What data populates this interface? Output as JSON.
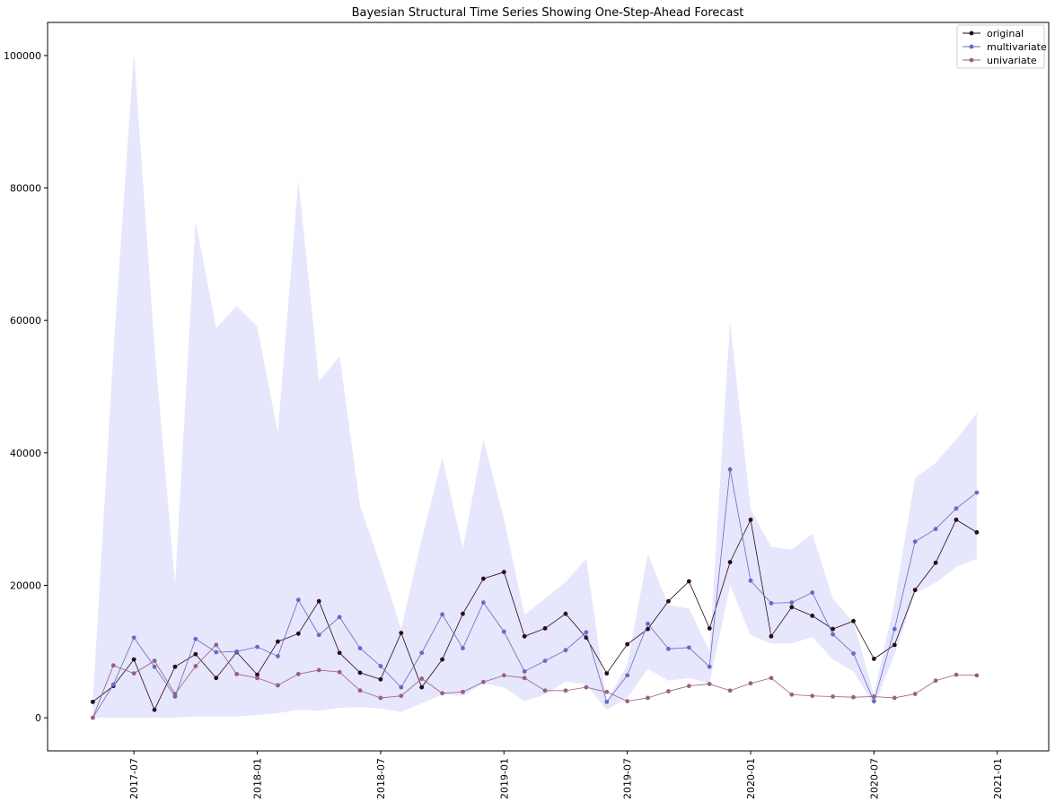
{
  "chart_data": {
    "type": "line",
    "title": "Bayesian Structural Time Series Showing One-Step-Ahead Forecast",
    "xlabel": "",
    "ylabel": "",
    "ylim": [
      -5000,
      105000
    ],
    "yticks": [
      0,
      20000,
      40000,
      60000,
      80000,
      100000
    ],
    "ytick_labels": [
      "0",
      "20000",
      "40000",
      "60000",
      "80000",
      "100000"
    ],
    "xlim_months": [
      -2.2,
      46.5
    ],
    "xticks_months": [
      2,
      8,
      14,
      20,
      26,
      32,
      38,
      44
    ],
    "xtick_labels": [
      "2017-07",
      "2018-01",
      "2018-07",
      "2019-01",
      "2019-07",
      "2020-01",
      "2020-07",
      "2021-01"
    ],
    "x_start": "2017-05",
    "x": [
      "2017-05",
      "2017-06",
      "2017-07",
      "2017-08",
      "2017-09",
      "2017-10",
      "2017-11",
      "2017-12",
      "2018-01",
      "2018-02",
      "2018-03",
      "2018-04",
      "2018-05",
      "2018-06",
      "2018-07",
      "2018-08",
      "2018-09",
      "2018-10",
      "2018-11",
      "2018-12",
      "2019-01",
      "2019-02",
      "2019-03",
      "2019-04",
      "2019-05",
      "2019-06",
      "2019-07",
      "2019-08",
      "2019-09",
      "2019-10",
      "2019-11",
      "2019-12",
      "2020-01",
      "2020-02",
      "2020-03",
      "2020-04",
      "2020-05",
      "2020-06",
      "2020-07",
      "2020-08",
      "2020-09",
      "2020-10",
      "2020-11",
      "2020-12"
    ],
    "series": [
      {
        "name": "original",
        "color": "#2a0a18",
        "values": [
          2400,
          4800,
          8800,
          1200,
          7700,
          9600,
          6000,
          9900,
          6500,
          11500,
          12700,
          17600,
          9800,
          6800,
          5800,
          12800,
          4600,
          8800,
          15700,
          21000,
          22000,
          12300,
          13500,
          15700,
          12100,
          6700,
          11100,
          13400,
          17600,
          20600,
          13500,
          23500,
          29900,
          12300,
          16700,
          15400,
          13400,
          14600,
          8900,
          11000,
          19300,
          23400,
          29900,
          28000
        ]
      },
      {
        "name": "multivariate",
        "color": "#6a6ac4",
        "values": [
          0,
          5000,
          12100,
          7700,
          3200,
          11900,
          9900,
          10000,
          10700,
          9300,
          17800,
          12500,
          15200,
          10500,
          7800,
          4600,
          9800,
          15600,
          10500,
          17400,
          13000,
          7000,
          8600,
          10200,
          12900,
          2400,
          6400,
          14200,
          10400,
          10600,
          7700,
          37500,
          20700,
          17300,
          17400,
          18900,
          12600,
          9700,
          2500,
          13400,
          26600,
          28500,
          31600,
          34000
        ]
      },
      {
        "name": "univariate",
        "color": "#9a6080",
        "values": [
          0,
          7900,
          6700,
          8600,
          3600,
          7800,
          11000,
          6600,
          6000,
          4900,
          6600,
          7200,
          6900,
          4100,
          3000,
          3300,
          5900,
          3700,
          3900,
          5400,
          6400,
          6000,
          4100,
          4100,
          4600,
          3900,
          2500,
          3000,
          4000,
          4800,
          5100,
          4100,
          5200,
          6000,
          3500,
          3300,
          3200,
          3100,
          3200,
          3000,
          3600,
          5600,
          6500,
          6400
        ]
      }
    ],
    "interval": {
      "name": "credible-interval",
      "color": "#e6e6fc",
      "upper": [
        2500,
        55000,
        100500,
        56000,
        20000,
        75000,
        58800,
        62200,
        59000,
        43000,
        81300,
        50800,
        54600,
        32000,
        23000,
        13400,
        27000,
        39200,
        25500,
        42000,
        30000,
        15500,
        18000,
        20500,
        24000,
        2500,
        8000,
        24700,
        17000,
        16500,
        10000,
        59800,
        31500,
        25800,
        25400,
        27800,
        18000,
        14400,
        3500,
        17500,
        36200,
        38500,
        42000,
        46000
      ],
      "lower": [
        0,
        0,
        0,
        0,
        0,
        200,
        200,
        200,
        400,
        700,
        1200,
        1100,
        1500,
        1600,
        1400,
        900,
        2200,
        3500,
        3300,
        5200,
        4600,
        2500,
        3500,
        5500,
        5000,
        1200,
        3000,
        7400,
        5600,
        6000,
        5200,
        20000,
        12500,
        11200,
        11200,
        12200,
        8800,
        7000,
        1800,
        9500,
        18800,
        20400,
        22800,
        24000
      ]
    },
    "legend": {
      "location": "top-right",
      "entries": [
        "original",
        "multivariate",
        "univariate"
      ]
    }
  }
}
